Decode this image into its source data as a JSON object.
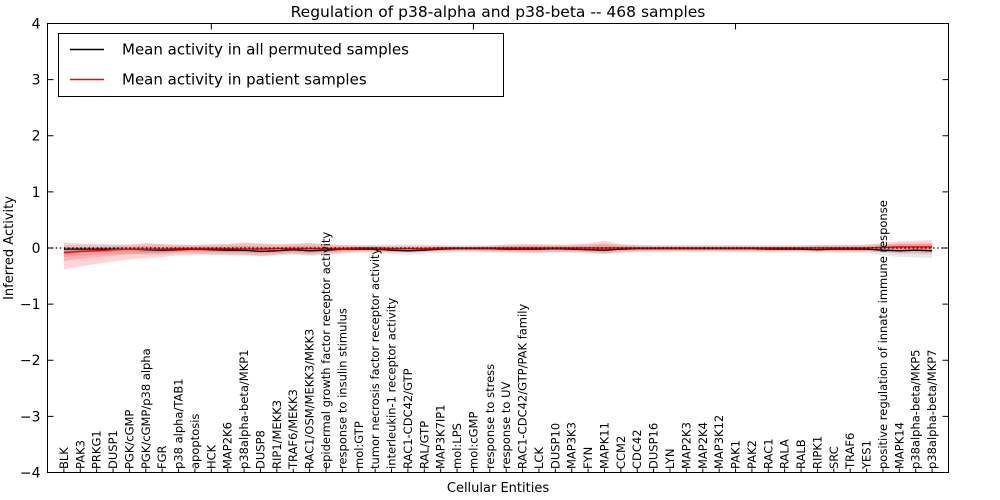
{
  "chart_data": {
    "type": "line",
    "title": "Regulation of p38-alpha and p38-beta -- 468 samples",
    "xlabel": "Cellular Entities",
    "ylabel": "Inferred Activity",
    "ylim": [
      -4,
      4
    ],
    "xlim": [
      -1,
      54
    ],
    "grid": false,
    "legend_position": "upper left",
    "ytick_values": [
      4,
      3,
      2,
      1,
      0,
      -1,
      -2,
      -3,
      -4
    ],
    "ytick_labels": [
      "4",
      "3",
      "2",
      "1",
      "0",
      "−1",
      "−2",
      "−3",
      "−4"
    ],
    "top_tick_indices": [
      9,
      25,
      41
    ],
    "zero_line": {
      "value": 0,
      "style": "dotted",
      "color": "#000000"
    },
    "categories": [
      "BLK",
      "PAK3",
      "PRKG1",
      "DUSP1",
      "PGK/cGMP",
      "PGK/cGMP/p38 alpha",
      "FGR",
      "p38 alpha/TAB1",
      "apoptosis",
      "HCK",
      "MAP2K6",
      "p38alpha-beta/MKP1",
      "DUSP8",
      "RIP1/MEKK3",
      "TRAF6/MEKK3",
      "RAC1/OSM/MEKK3/MKK3",
      "epidermal growth factor receptor activity",
      "response to insulin stimulus",
      "mol:GTP",
      "tumor necrosis factor receptor activity",
      "interleukin-1 receptor activity",
      "RAC1-CDC42/GTP",
      "RAL/GTP",
      "MAP3K7IP1",
      "mol:LPS",
      "mol:cGMP",
      "response to stress",
      "response to UV",
      "RAC1-CDC42/GTP/PAK family",
      "LCK",
      "DUSP10",
      "MAP3K3",
      "FYN",
      "MAPK11",
      "CCM2",
      "CDC42",
      "DUSP16",
      "LYN",
      "MAP2K3",
      "MAP2K4",
      "MAP3K12",
      "PAK1",
      "PAK2",
      "RAC1",
      "RALA",
      "RALB",
      "RIPK1",
      "SRC",
      "TRAF6",
      "YES1",
      "positive regulation of innate immune response",
      "MAPK14",
      "p38alpha-beta/MKP5",
      "p38alpha-beta/MKP7"
    ],
    "series": [
      {
        "name": "Mean activity in all permuted samples",
        "color": "#000000",
        "line_width": 1.3,
        "band_color": "#000000",
        "band_opacity": 0.09,
        "values": [
          -0.02,
          -0.02,
          -0.02,
          -0.02,
          -0.02,
          -0.03,
          -0.04,
          -0.03,
          -0.02,
          -0.03,
          -0.04,
          -0.04,
          -0.06,
          -0.05,
          -0.03,
          -0.05,
          -0.04,
          -0.02,
          -0.02,
          -0.02,
          -0.04,
          -0.05,
          -0.04,
          -0.02,
          -0.01,
          -0.01,
          -0.01,
          -0.02,
          -0.02,
          -0.02,
          -0.01,
          -0.02,
          -0.03,
          -0.04,
          -0.02,
          -0.01,
          -0.01,
          -0.01,
          -0.01,
          -0.01,
          -0.01,
          -0.01,
          -0.01,
          -0.02,
          -0.02,
          -0.02,
          -0.03,
          -0.02,
          -0.02,
          -0.02,
          -0.04,
          -0.05,
          -0.04,
          -0.05
        ],
        "band_hi": [
          0.06,
          0.06,
          0.06,
          0.06,
          0.06,
          0.07,
          0.07,
          0.06,
          0.06,
          0.07,
          0.07,
          0.08,
          0.08,
          0.07,
          0.07,
          0.08,
          0.07,
          0.06,
          0.05,
          0.06,
          0.06,
          0.06,
          0.06,
          0.05,
          0.05,
          0.05,
          0.05,
          0.06,
          0.06,
          0.06,
          0.06,
          0.06,
          0.07,
          0.08,
          0.06,
          0.06,
          0.05,
          0.05,
          0.05,
          0.05,
          0.05,
          0.05,
          0.05,
          0.05,
          0.05,
          0.05,
          0.06,
          0.06,
          0.06,
          0.06,
          0.07,
          0.08,
          0.08,
          0.08
        ],
        "band_lo": [
          -0.16,
          -0.14,
          -0.12,
          -0.11,
          -0.1,
          -0.12,
          -0.12,
          -0.1,
          -0.1,
          -0.11,
          -0.12,
          -0.13,
          -0.15,
          -0.13,
          -0.12,
          -0.14,
          -0.12,
          -0.1,
          -0.08,
          -0.09,
          -0.11,
          -0.12,
          -0.1,
          -0.08,
          -0.07,
          -0.07,
          -0.08,
          -0.08,
          -0.09,
          -0.09,
          -0.08,
          -0.09,
          -0.1,
          -0.11,
          -0.09,
          -0.08,
          -0.07,
          -0.07,
          -0.07,
          -0.07,
          -0.07,
          -0.07,
          -0.07,
          -0.08,
          -0.08,
          -0.08,
          -0.09,
          -0.08,
          -0.08,
          -0.09,
          -0.13,
          -0.16,
          -0.17,
          -0.18
        ]
      },
      {
        "name": "Mean activity in patient samples",
        "color": "#ff0000",
        "line_width": 1.5,
        "band_color": "#ff0000",
        "band_opacity": 0.17,
        "values": [
          -0.08,
          -0.06,
          -0.05,
          -0.03,
          -0.02,
          -0.02,
          -0.02,
          -0.01,
          -0.01,
          -0.01,
          -0.01,
          -0.02,
          -0.02,
          -0.01,
          -0.01,
          -0.01,
          -0.01,
          -0.01,
          0,
          0,
          -0.01,
          -0.01,
          -0.01,
          0,
          0,
          0,
          0,
          0,
          0,
          0,
          0,
          0,
          0,
          0,
          0,
          0,
          0,
          0,
          0,
          0,
          0,
          0,
          0,
          0,
          0,
          0,
          0,
          0,
          0,
          0,
          0.01,
          0.02,
          0.02,
          0.02
        ],
        "band_hi": [
          0.1,
          0.08,
          0.07,
          0.06,
          0.06,
          0.09,
          0.07,
          0.06,
          0.05,
          0.06,
          0.07,
          0.1,
          0.08,
          0.06,
          0.08,
          0.09,
          0.07,
          0.05,
          0.04,
          0.04,
          0.04,
          0.04,
          0.04,
          0.04,
          0.03,
          0.03,
          0.04,
          0.06,
          0.07,
          0.07,
          0.06,
          0.06,
          0.08,
          0.13,
          0.07,
          0.05,
          0.04,
          0.04,
          0.04,
          0.04,
          0.04,
          0.04,
          0.04,
          0.04,
          0.04,
          0.04,
          0.05,
          0.05,
          0.05,
          0.06,
          0.09,
          0.12,
          0.13,
          0.14
        ],
        "band_lo": [
          -0.38,
          -0.33,
          -0.28,
          -0.24,
          -0.2,
          -0.18,
          -0.16,
          -0.13,
          -0.12,
          -0.12,
          -0.12,
          -0.12,
          -0.14,
          -0.12,
          -0.1,
          -0.12,
          -0.1,
          -0.08,
          -0.06,
          -0.06,
          -0.07,
          -0.07,
          -0.06,
          -0.05,
          -0.05,
          -0.05,
          -0.06,
          -0.07,
          -0.08,
          -0.08,
          -0.07,
          -0.07,
          -0.08,
          -0.1,
          -0.07,
          -0.06,
          -0.05,
          -0.05,
          -0.05,
          -0.05,
          -0.05,
          -0.05,
          -0.05,
          -0.05,
          -0.05,
          -0.05,
          -0.06,
          -0.06,
          -0.06,
          -0.06,
          -0.07,
          -0.08,
          -0.08,
          -0.09
        ]
      }
    ]
  }
}
